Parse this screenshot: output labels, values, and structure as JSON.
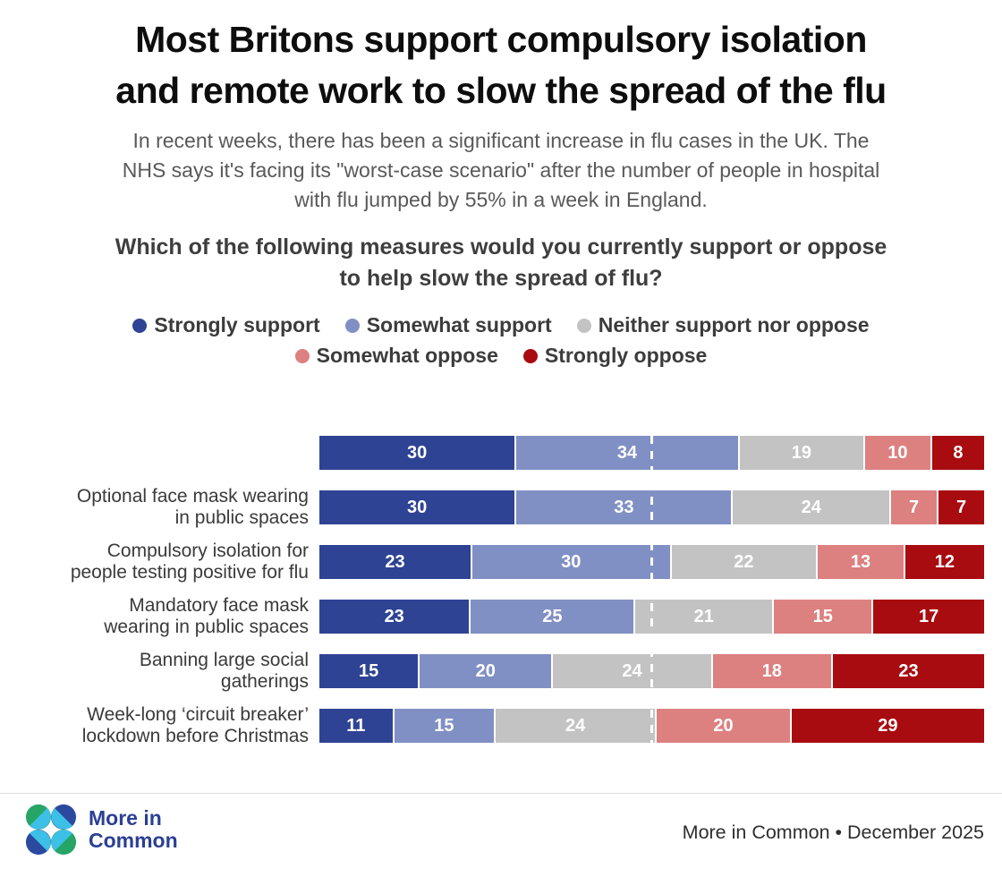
{
  "header": {
    "title": "Most Britons support compulsory isolation\nand remote work to slow the spread of the flu",
    "subtitle": "In recent weeks, there has been a significant increase in flu cases in the UK. The\nNHS says it's facing its \"worst-case scenario\" after the number of people in hospital\nwith flu jumped by 55% in a week in England.",
    "question": "Which of the following measures would you currently support or oppose\nto help slow the spread of flu?"
  },
  "colors": {
    "strongly_support": "#2f4394",
    "somewhat_support": "#8190c4",
    "neither": "#c3c3c3",
    "somewhat_oppose": "#dd8080",
    "strongly_oppose": "#a80c10",
    "logo_green": "#27a566",
    "logo_blue": "#2b4a9f",
    "logo_cyan": "#3cc0e8"
  },
  "chart_data": {
    "type": "bar",
    "orientation": "horizontal-stacked",
    "xlim": [
      0,
      100
    ],
    "value_labels": "inside-white",
    "reference_line_x": 50,
    "categories": [
      "",
      "Optional face mask wearing\nin public spaces",
      "Compulsory isolation for\npeople testing positive for flu",
      "Mandatory face mask\nwearing in public spaces",
      "Banning large social\ngatherings",
      "Week-long ‘circuit breaker’\nlockdown before Christmas"
    ],
    "series": [
      {
        "name": "Strongly support",
        "color": "#2f4394",
        "values": [
          30,
          30,
          23,
          23,
          15,
          11
        ]
      },
      {
        "name": "Somewhat support",
        "color": "#8190c4",
        "values": [
          34,
          33,
          30,
          25,
          20,
          15
        ]
      },
      {
        "name": "Neither support nor oppose",
        "color": "#c3c3c3",
        "values": [
          19,
          24,
          22,
          21,
          24,
          24
        ]
      },
      {
        "name": "Somewhat oppose",
        "color": "#dd8080",
        "values": [
          10,
          7,
          13,
          15,
          18,
          20
        ]
      },
      {
        "name": "Strongly oppose",
        "color": "#a80c10",
        "values": [
          8,
          7,
          12,
          17,
          23,
          29
        ]
      }
    ],
    "legend_position": "top-center"
  },
  "footer": {
    "logo_lines": "More in\nCommon",
    "source": "More in Common • December 2025"
  }
}
